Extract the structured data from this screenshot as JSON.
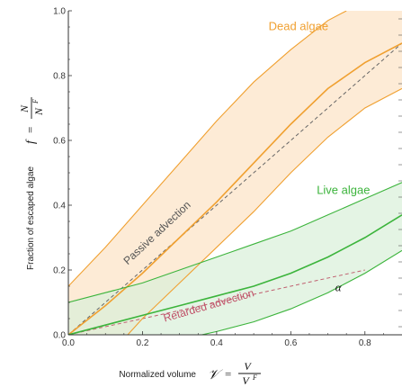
{
  "chart_data": {
    "type": "line",
    "xlabel": "Normalized volume",
    "ylabel": "Fraction of escaped algae",
    "xlabel_formula": {
      "lhs": "𝒱",
      "eq": "=",
      "num": "V",
      "den": "V",
      "den_sup": "F"
    },
    "ylabel_formula": {
      "lhs": "f",
      "eq": "=",
      "num": "N",
      "den": "N",
      "den_sup": "F"
    },
    "xlim": [
      0,
      0.9
    ],
    "ylim": [
      0,
      1.0
    ],
    "x_ticks": [
      0.0,
      0.2,
      0.4,
      0.6,
      0.8
    ],
    "x_tick_labels": [
      "0.0",
      "0.2",
      "0.4",
      "0.6",
      "0.8"
    ],
    "y_ticks": [
      0.0,
      0.2,
      0.4,
      0.6,
      0.8,
      1.0
    ],
    "y_tick_labels": [
      "0.0",
      "0.2",
      "0.4",
      "0.6",
      "0.8",
      "1.0"
    ],
    "grid": false,
    "colors": {
      "dead": "#f0a030",
      "dead_fill": "#fde7cf",
      "live": "#3cb43c",
      "live_fill": "#d8f0d8",
      "passive": "#666666",
      "retarded": "#c06070",
      "overlap": "#cfd8a8"
    },
    "series": [
      {
        "name": "Dead algae",
        "center": {
          "x": [
            0,
            0.1,
            0.2,
            0.3,
            0.4,
            0.5,
            0.6,
            0.7,
            0.8,
            0.9
          ],
          "y": [
            0,
            0.09,
            0.19,
            0.3,
            0.41,
            0.53,
            0.65,
            0.76,
            0.84,
            0.9
          ]
        },
        "upper": {
          "x": [
            0,
            0.1,
            0.2,
            0.3,
            0.4,
            0.5,
            0.6,
            0.7,
            0.75
          ],
          "y": [
            0.15,
            0.27,
            0.4,
            0.53,
            0.66,
            0.78,
            0.88,
            0.97,
            1.0
          ]
        },
        "lower": {
          "x": [
            0.16,
            0.2,
            0.3,
            0.4,
            0.5,
            0.6,
            0.7,
            0.8,
            0.9
          ],
          "y": [
            0,
            0.05,
            0.16,
            0.27,
            0.38,
            0.5,
            0.61,
            0.7,
            0.76
          ]
        }
      },
      {
        "name": "Live algae",
        "center": {
          "x": [
            0,
            0.1,
            0.2,
            0.3,
            0.4,
            0.5,
            0.6,
            0.7,
            0.8,
            0.9
          ],
          "y": [
            0,
            0.03,
            0.06,
            0.09,
            0.12,
            0.15,
            0.19,
            0.24,
            0.3,
            0.37
          ]
        },
        "upper": {
          "x": [
            0,
            0.1,
            0.2,
            0.3,
            0.4,
            0.5,
            0.6,
            0.7,
            0.8,
            0.9
          ],
          "y": [
            0.1,
            0.13,
            0.16,
            0.2,
            0.24,
            0.28,
            0.32,
            0.37,
            0.42,
            0.47
          ]
        },
        "lower": {
          "x": [
            0.36,
            0.4,
            0.5,
            0.6,
            0.7,
            0.8,
            0.9
          ],
          "y": [
            0,
            0.01,
            0.04,
            0.08,
            0.13,
            0.19,
            0.26
          ]
        }
      }
    ],
    "passive_advection": {
      "x": [
        0,
        0.9
      ],
      "y": [
        0,
        0.9
      ]
    },
    "retarded_advection": {
      "x": [
        0,
        0.8
      ],
      "y": [
        0,
        0.2
      ]
    },
    "annotations": [
      {
        "text": "Passive advection",
        "x": 0.16,
        "y": 0.215,
        "rotate": -43,
        "color": "#555555"
      },
      {
        "text": "Retarded advection",
        "x": 0.26,
        "y": 0.04,
        "rotate": -16,
        "color": "#c05068"
      },
      {
        "text": "α",
        "x": 0.72,
        "y": 0.135,
        "rotate": 0,
        "color": "#c05068"
      }
    ],
    "series_labels": [
      {
        "text": "Dead algae",
        "x": 0.54,
        "y": 0.94,
        "color": "#f0a030"
      },
      {
        "text": "Live algae",
        "x": 0.67,
        "y": 0.435,
        "color": "#3cb43c"
      }
    ]
  }
}
